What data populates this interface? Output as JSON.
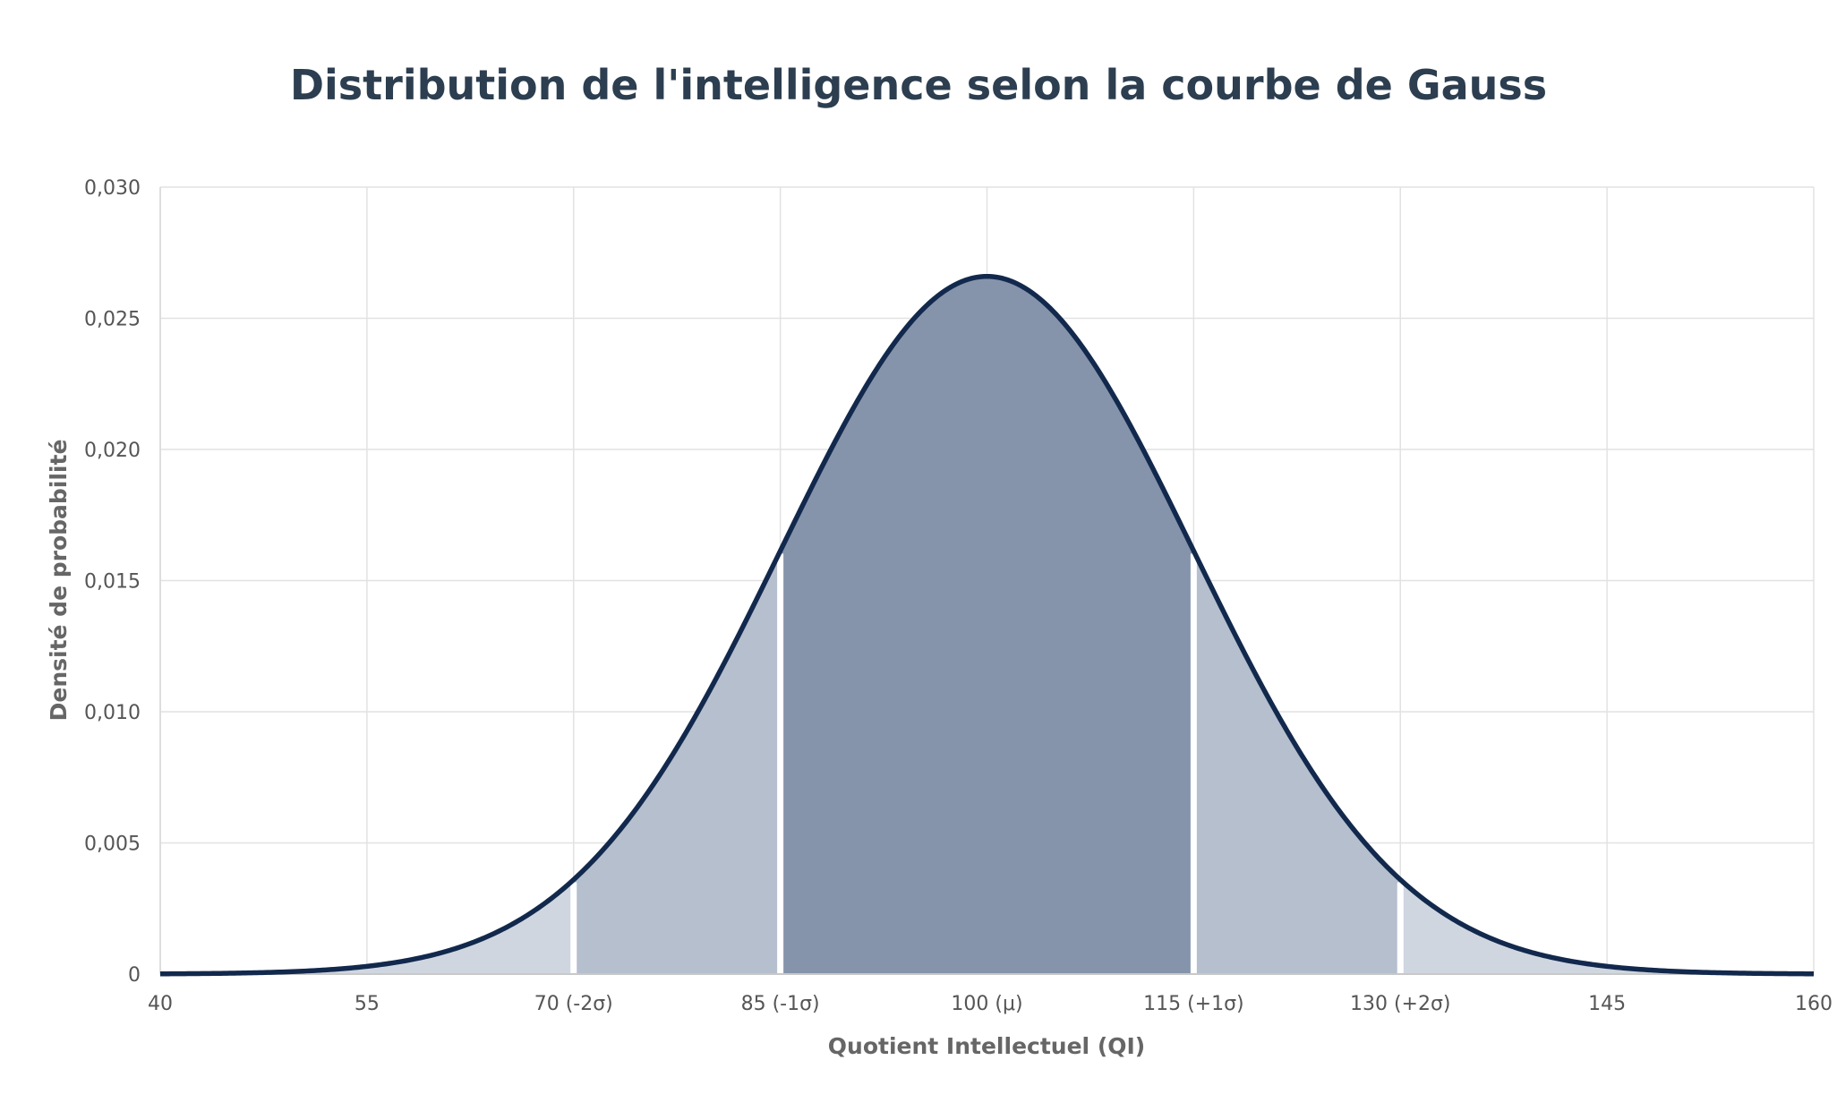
{
  "chart_data": {
    "type": "area",
    "title": "Distribution de l'intelligence selon la courbe de Gauss",
    "xlabel": "Quotient Intellectuel (QI)",
    "ylabel": "Densité de probabilité",
    "distribution": {
      "mean": 100,
      "std": 15
    },
    "xlim": [
      40,
      160
    ],
    "ylim": [
      0,
      0.03
    ],
    "x_ticks": [
      {
        "value": 40,
        "label": "40"
      },
      {
        "value": 55,
        "label": "55"
      },
      {
        "value": 70,
        "label": "70 (-2σ)"
      },
      {
        "value": 85,
        "label": "85 (-1σ)"
      },
      {
        "value": 100,
        "label": "100 (μ)"
      },
      {
        "value": 115,
        "label": "115 (+1σ)"
      },
      {
        "value": 130,
        "label": "130 (+2σ)"
      },
      {
        "value": 145,
        "label": "145"
      },
      {
        "value": 160,
        "label": "160"
      }
    ],
    "y_ticks": [
      {
        "value": 0,
        "label": "0"
      },
      {
        "value": 0.005,
        "label": "0,005"
      },
      {
        "value": 0.01,
        "label": "0,010"
      },
      {
        "value": 0.015,
        "label": "0,015"
      },
      {
        "value": 0.02,
        "label": "0,020"
      },
      {
        "value": 0.025,
        "label": "0,025"
      },
      {
        "value": 0.03,
        "label": "0,030"
      }
    ],
    "regions": [
      {
        "from": 40,
        "to": 70,
        "fill": "#d0d6e0"
      },
      {
        "from": 70,
        "to": 85,
        "fill": "#b5bfcd"
      },
      {
        "from": 85,
        "to": 115,
        "fill": "#8594ab"
      },
      {
        "from": 115,
        "to": 130,
        "fill": "#b5bfcd"
      },
      {
        "from": 130,
        "to": 160,
        "fill": "#d0d6e0"
      }
    ],
    "grid": true,
    "line_color": "#12294d"
  }
}
